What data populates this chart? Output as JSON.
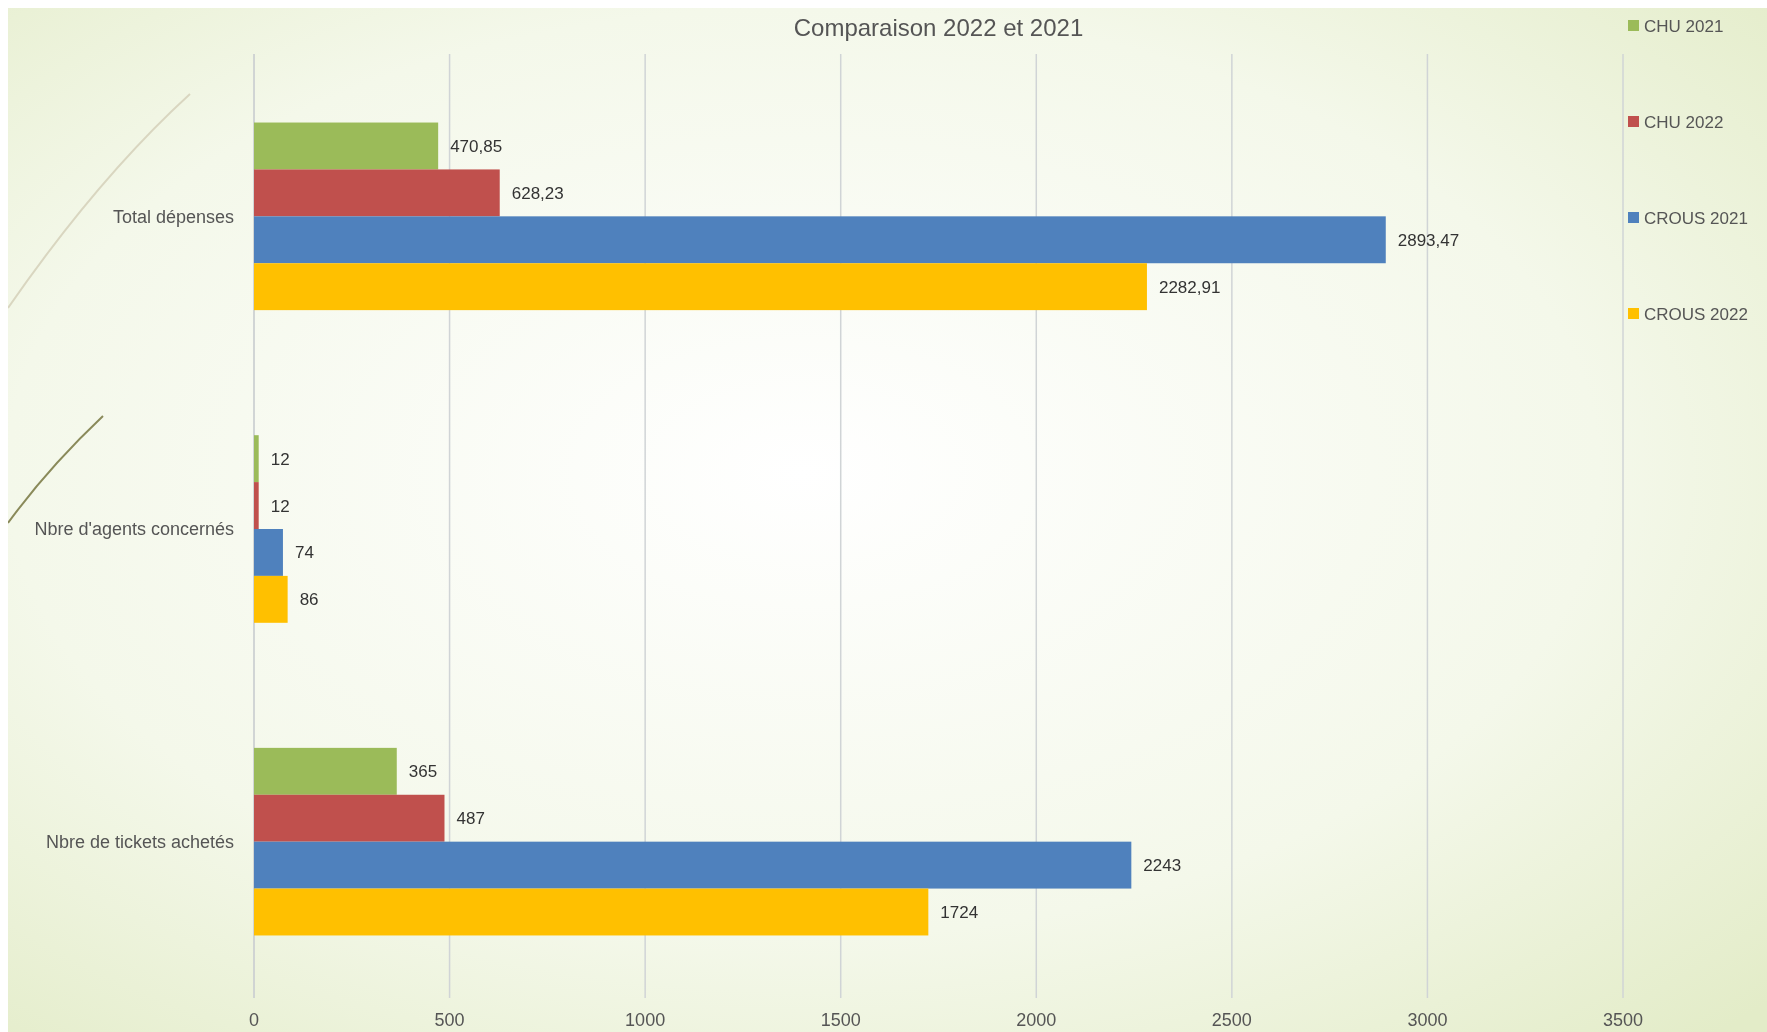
{
  "chart_data": {
    "type": "bar",
    "orientation": "horizontal",
    "title": "Comparaison 2022 et 2021",
    "categories": [
      "Total dépenses",
      "Nbre d'agents concernés",
      "Nbre de tickets achetés"
    ],
    "series": [
      {
        "name": "CHU 2021",
        "color": "#9bbb59",
        "values": [
          470.85,
          12,
          365
        ],
        "value_labels": [
          "470,85",
          "12",
          "365"
        ]
      },
      {
        "name": "CHU 2022",
        "color": "#c0504d",
        "values": [
          628.23,
          12,
          487
        ],
        "value_labels": [
          "628,23",
          "12",
          "487"
        ]
      },
      {
        "name": "CROUS 2021",
        "color": "#4f81bd",
        "values": [
          2893.47,
          74,
          2243
        ],
        "value_labels": [
          "2893,47",
          "74",
          "2243"
        ]
      },
      {
        "name": "CROUS 2022",
        "color": "#ffc000",
        "values": [
          2282.91,
          86,
          1724
        ],
        "value_labels": [
          "2282,91",
          "86",
          "1724"
        ]
      }
    ],
    "xlim": [
      0,
      3500
    ],
    "xticks": [
      0,
      500,
      1000,
      1500,
      2000,
      2500,
      3000,
      3500
    ],
    "grid": "x",
    "legend": "right"
  }
}
